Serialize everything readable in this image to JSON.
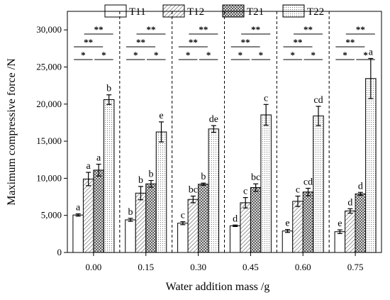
{
  "chart_data": {
    "type": "bar",
    "xlabel": "Water addition mass /g",
    "ylabel": "Maximum compressive force /N",
    "ylim": [
      0,
      32500
    ],
    "yticks": [
      0,
      5000,
      10000,
      15000,
      20000,
      25000,
      30000
    ],
    "ytick_labels": [
      "0",
      "5,000",
      "10,000",
      "15,000",
      "20,000",
      "25,000",
      "30,000"
    ],
    "categories": [
      "0.00",
      "0.15",
      "0.30",
      "0.45",
      "0.60",
      "0.75"
    ],
    "legend_position": "top",
    "series": [
      {
        "name": "T11",
        "pattern": "blank",
        "values": [
          5050,
          4400,
          3950,
          3600,
          2900,
          2800
        ],
        "errors": [
          150,
          200,
          200,
          100,
          200,
          250
        ],
        "letters": [
          "a",
          "b",
          "c",
          "d",
          "e",
          "e"
        ]
      },
      {
        "name": "T12",
        "pattern": "diagonal",
        "values": [
          9900,
          8000,
          7150,
          6700,
          6900,
          5600
        ],
        "errors": [
          900,
          900,
          450,
          700,
          700,
          300
        ],
        "letters": [
          "a",
          "b",
          "bc",
          "c",
          "c",
          "d"
        ]
      },
      {
        "name": "T21",
        "pattern": "crosshatch",
        "values": [
          11100,
          9250,
          9200,
          8750,
          8150,
          7900
        ],
        "errors": [
          800,
          450,
          150,
          500,
          500,
          200
        ],
        "letters": [
          "a",
          "b",
          "b",
          "bc",
          "cd",
          "d"
        ]
      },
      {
        "name": "T22",
        "pattern": "dots",
        "values": [
          20600,
          16250,
          16650,
          18550,
          18400,
          23450
        ],
        "errors": [
          650,
          1350,
          450,
          1400,
          1300,
          2700
        ],
        "letters": [
          "b",
          "e",
          "de",
          "c",
          "cd",
          "a"
        ]
      }
    ],
    "significance_marks": [
      "**",
      "**",
      "*",
      "*"
    ]
  }
}
